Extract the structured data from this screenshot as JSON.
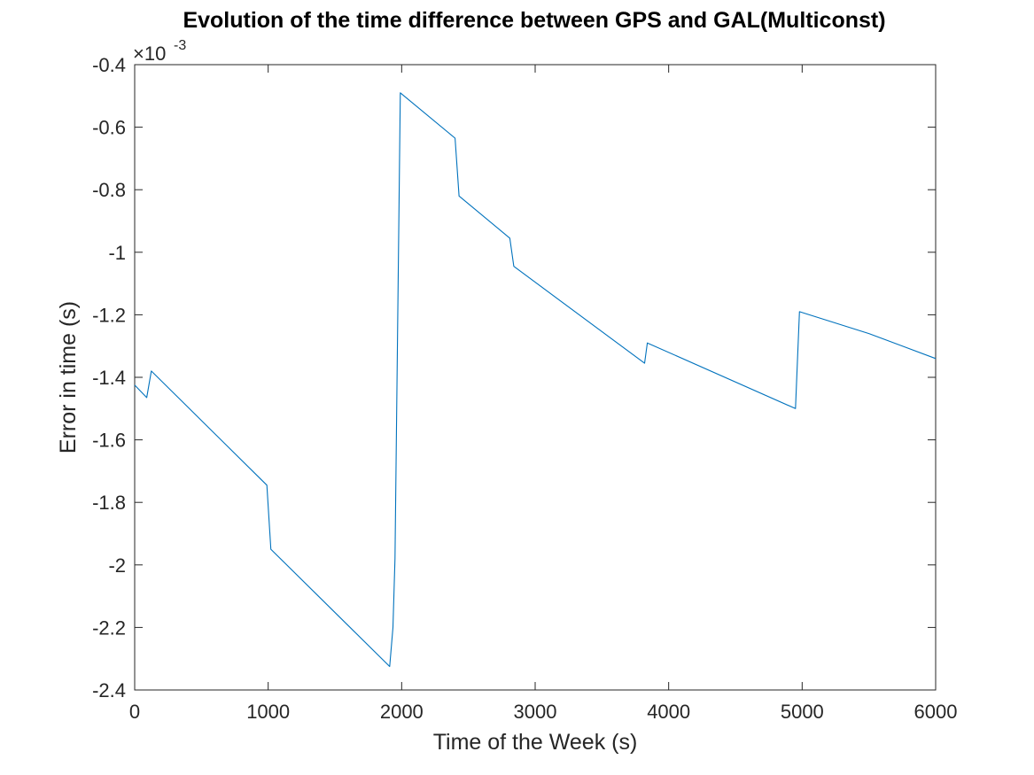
{
  "chart_data": {
    "type": "line",
    "title": "Evolution of the time difference between GPS and GAL(Multiconst)",
    "xlabel": "Time of the Week (s)",
    "ylabel": "Error in time (s)",
    "xlim": [
      0,
      6000
    ],
    "ylim": [
      -2.4,
      -0.4
    ],
    "y_multiplier": {
      "base": "×10",
      "exponent": "-3"
    },
    "xticks": [
      0,
      1000,
      2000,
      3000,
      4000,
      5000,
      6000
    ],
    "xtick_labels": [
      "0",
      "1000",
      "2000",
      "3000",
      "4000",
      "5000",
      "6000"
    ],
    "yticks": [
      -2.4,
      -2.2,
      -2,
      -1.8,
      -1.6,
      -1.4,
      -1.2,
      -1,
      -0.8,
      -0.6,
      -0.4
    ],
    "ytick_labels": [
      "-2.4",
      "-2.2",
      "-2",
      "-1.8",
      "-1.6",
      "-1.4",
      "-1.2",
      "-1",
      "-0.8",
      "-0.6",
      "-0.4"
    ],
    "grid": false,
    "series": [
      {
        "color": "#0072BD",
        "x": [
          0,
          90,
          125,
          990,
          1020,
          1910,
          1935,
          1950,
          1990,
          2400,
          2430,
          2810,
          2840,
          3820,
          3840,
          4950,
          4980,
          5500,
          6000
        ],
        "y": [
          -1.425,
          -1.465,
          -1.38,
          -1.745,
          -1.95,
          -2.325,
          -2.2,
          -1.98,
          -0.49,
          -0.635,
          -0.82,
          -0.955,
          -1.045,
          -1.355,
          -1.29,
          -1.5,
          -1.19,
          -1.26,
          -1.34
        ]
      }
    ]
  }
}
